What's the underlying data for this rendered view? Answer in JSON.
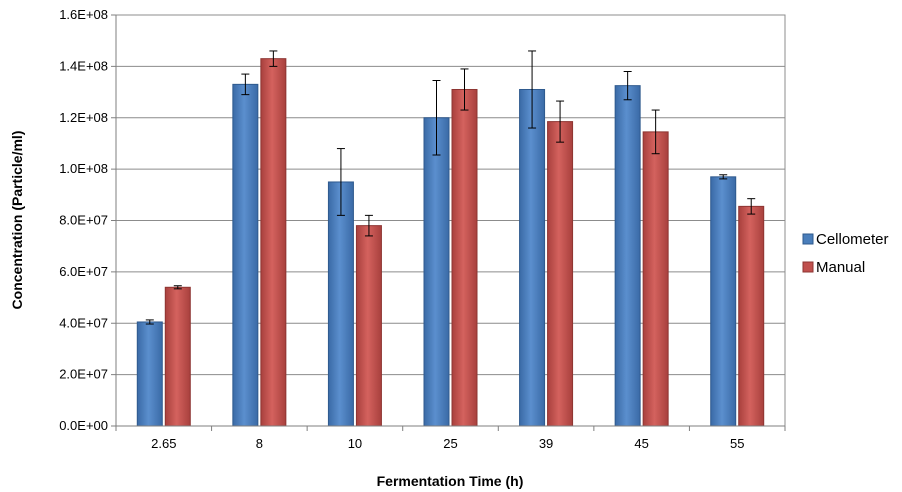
{
  "chart_data": {
    "type": "bar",
    "title": "",
    "xlabel": "Fermentation Time (h)",
    "ylabel": "Concentration (Particle/ml)",
    "categories": [
      "2.65",
      "8",
      "10",
      "25",
      "39",
      "45",
      "55"
    ],
    "ylim": [
      0,
      160000000
    ],
    "yticks": [
      0,
      20000000,
      40000000,
      60000000,
      80000000,
      100000000,
      120000000,
      140000000,
      160000000
    ],
    "ytick_labels": [
      "0.0E+00",
      "2.0E+07",
      "4.0E+07",
      "6.0E+07",
      "8.0E+07",
      "1.0E+08",
      "1.2E+08",
      "1.4E+08",
      "1.6E+08"
    ],
    "grid": true,
    "legend_position": "right",
    "series": [
      {
        "name": "Cellometer",
        "color": "#4A7EBB",
        "values": [
          40500000,
          133000000,
          95000000,
          120000000,
          131000000,
          132500000,
          97000000
        ],
        "errors": [
          800000,
          4000000,
          13000000,
          14500000,
          15000000,
          5500000,
          800000
        ]
      },
      {
        "name": "Manual",
        "color": "#C0504D",
        "values": [
          54000000,
          143000000,
          78000000,
          131000000,
          118500000,
          114500000,
          85500000
        ],
        "errors": [
          600000,
          3000000,
          4000000,
          8000000,
          8000000,
          8500000,
          3000000
        ]
      }
    ]
  }
}
